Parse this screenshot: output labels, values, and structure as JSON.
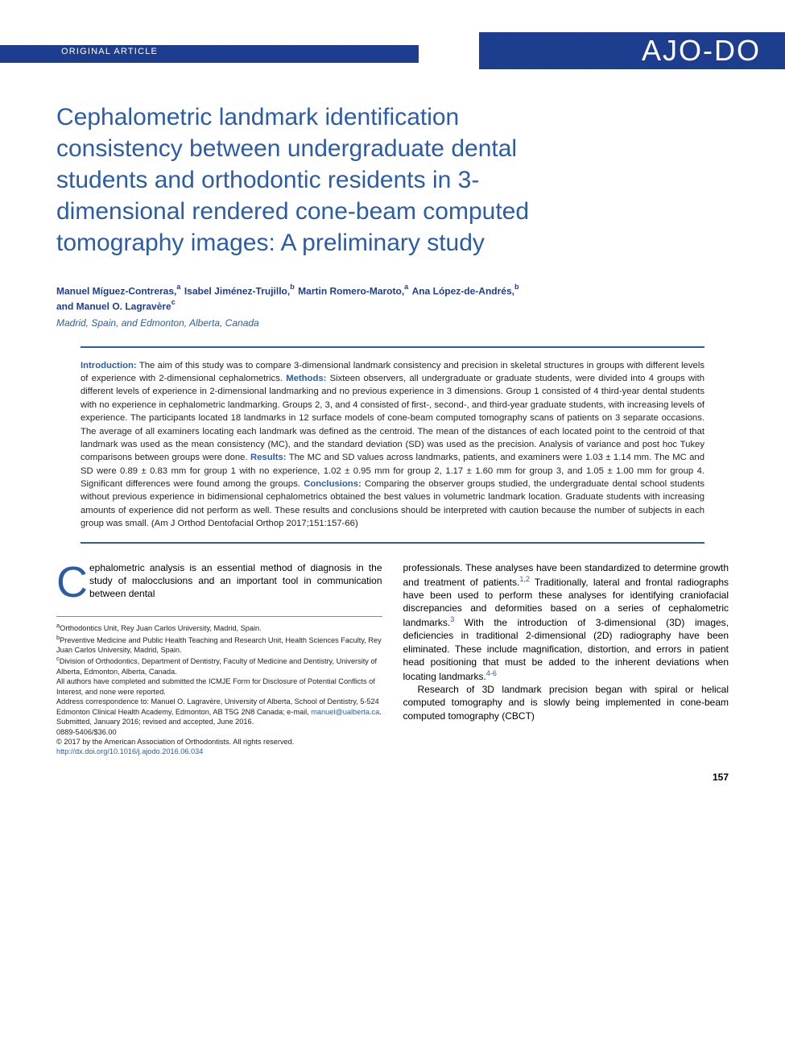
{
  "header": {
    "article_type": "ORIGINAL ARTICLE",
    "journal_logo": "AJO-DO"
  },
  "title": "Cephalometric landmark identification consistency between undergraduate dental students and orthodontic residents in 3-dimensional rendered cone-beam computed tomography images: A preliminary study",
  "authors_line1": "Manuel Míguez-Contreras,",
  "authors_sup1": "a",
  "authors_line2": " Isabel Jiménez-Trujillo,",
  "authors_sup2": "b",
  "authors_line3": " Martin Romero-Maroto,",
  "authors_sup3": "a",
  "authors_line4": " Ana López-de-Andrés,",
  "authors_sup4": "b",
  "authors_line5": "and Manuel O. Lagravère",
  "authors_sup5": "c",
  "locations": "Madrid, Spain, and Edmonton, Alberta, Canada",
  "abstract": {
    "intro_label": "Introduction:",
    "intro_text": " The aim of this study was to compare 3-dimensional landmark consistency and precision in skeletal structures in groups with different levels of experience with 2-dimensional cephalometrics. ",
    "methods_label": "Methods:",
    "methods_text": " Sixteen observers, all undergraduate or graduate students, were divided into 4 groups with different levels of experience in 2-dimensional landmarking and no previous experience in 3 dimensions. Group 1 consisted of 4 third-year dental students with no experience in cephalometric landmarking. Groups 2, 3, and 4 consisted of first-, second-, and third-year graduate students, with increasing levels of experience. The participants located 18 landmarks in 12 surface models of cone-beam computed tomography scans of patients on 3 separate occasions. The average of all examiners locating each landmark was defined as the centroid. The mean of the distances of each located point to the centroid of that landmark was used as the mean consistency (MC), and the standard deviation (SD) was used as the precision. Analysis of variance and post hoc Tukey comparisons between groups were done. ",
    "results_label": "Results:",
    "results_text": " The MC and SD values across landmarks, patients, and examiners were 1.03 ± 1.14 mm. The MC and SD were 0.89 ± 0.83 mm for group 1 with no experience, 1.02 ± 0.95 mm for group 2, 1.17 ± 1.60 mm for group 3, and 1.05 ± 1.00 mm for group 4. Significant differences were found among the groups. ",
    "conclusions_label": "Conclusions:",
    "conclusions_text": " Comparing the observer groups studied, the undergraduate dental school students without previous experience in bidimensional cephalometrics obtained the best values in volumetric landmark location. Graduate students with increasing amounts of experience did not perform as well. These results and conclusions should be interpreted with caution because the number of subjects in each group was small. (Am J Orthod Dentofacial Orthop 2017;151:157-66)"
  },
  "body": {
    "dropcap": "C",
    "para1": "ephalometric analysis is an essential method of diagnosis in the study of malocclusions and an important tool in communication between dental",
    "col2_p1a": "professionals. These analyses have been standardized to determine growth and treatment of patients.",
    "cite1": "1,2",
    "col2_p1b": " Traditionally, lateral and frontal radiographs have been used to perform these analyses for identifying craniofacial discrepancies and deformities based on a series of cephalometric landmarks.",
    "cite2": "3",
    "col2_p1c": " With the introduction of 3-dimensional (3D) images, deficiencies in traditional 2-dimensional (2D) radiography have been eliminated. These include magnification, distortion, and errors in patient head positioning that must be added to the inherent deviations when locating landmarks.",
    "cite3": "4-6",
    "col2_p2": "Research of 3D landmark precision began with spiral or helical computed tomography and is slowly being implemented in cone-beam computed tomography (CBCT)"
  },
  "affiliations": {
    "a_sup": "a",
    "a": "Orthodontics Unit, Rey Juan Carlos University, Madrid, Spain.",
    "b_sup": "b",
    "b": "Preventive Medicine and Public Health Teaching and Research Unit, Health Sciences Faculty, Rey Juan Carlos University, Madrid, Spain.",
    "c_sup": "c",
    "c": "Division of Orthodontics, Department of Dentistry, Faculty of Medicine and Dentistry, University of Alberta, Edmonton, Alberta, Canada.",
    "disclosure": "All authors have completed and submitted the ICMJE Form for Disclosure of Potential Conflicts of Interest, and none were reported.",
    "correspondence": "Address correspondence to: Manuel O. Lagravère, University of Alberta, School of Dentistry, 5-524 Edmonton Clinical Health Academy, Edmonton, AB T5G 2N8 Canada; e-mail, ",
    "email": "manuel@ualberta.ca",
    "email_suffix": ".",
    "submitted": "Submitted, January 2016; revised and accepted, June 2016.",
    "issn": "0889-5406/$36.00",
    "copyright": "© 2017 by the American Association of Orthodontists. All rights reserved.",
    "doi": "http://dx.doi.org/10.1016/j.ajodo.2016.06.034"
  },
  "page_number": "157",
  "colors": {
    "brand_blue": "#1d3d8f",
    "title_blue": "#2b5ca8",
    "text": "#222222"
  }
}
